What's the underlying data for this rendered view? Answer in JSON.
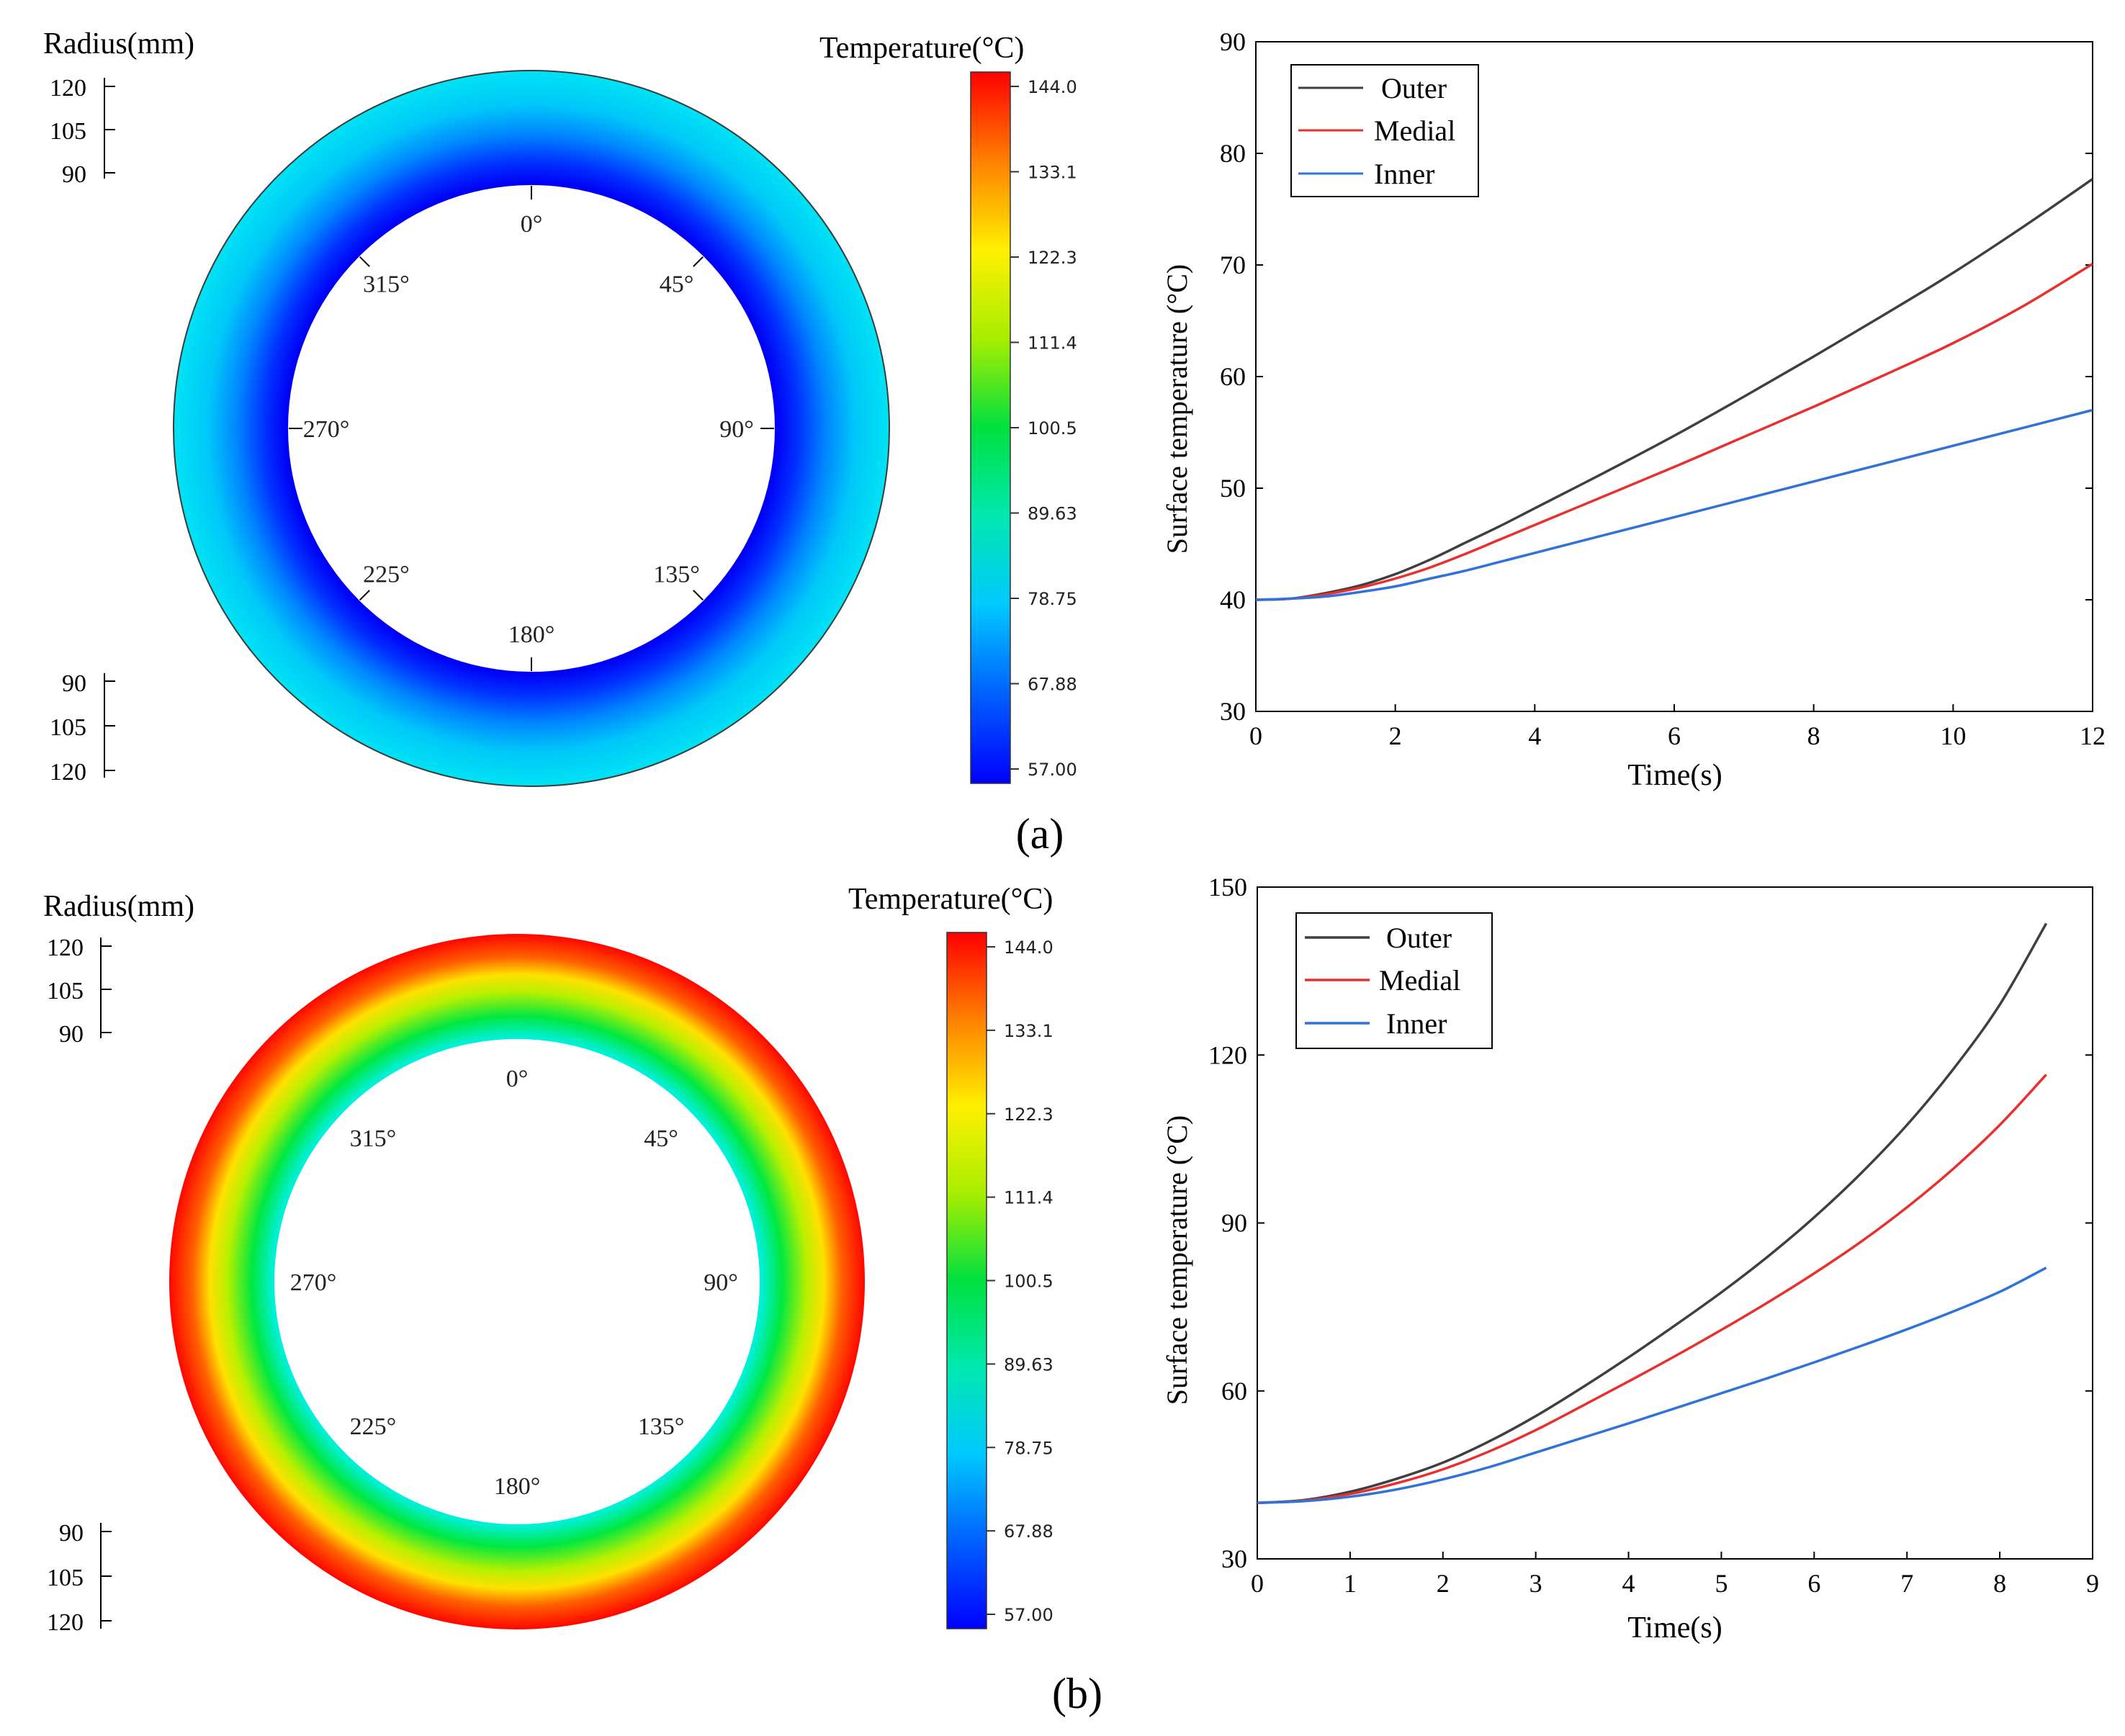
{
  "figure": {
    "panel_a_label": "(a)",
    "panel_b_label": "(b)"
  },
  "chart_data": [
    {
      "panel": "a",
      "type": "polar-contour",
      "radius_title": "Radius(mm)",
      "radius_ticks": [
        "120",
        "105",
        "90"
      ],
      "colorbar_title": "Temperature(°C)",
      "colorbar_labels": [
        "144.0",
        "133.1",
        "122.3",
        "111.4",
        "100.5",
        "89.63",
        "78.75",
        "67.88",
        "57.00"
      ],
      "colorbar_range": [
        57.0,
        144.0
      ],
      "inner_radius_mm": 90,
      "outer_radius_mm": 120,
      "inner_temperature": 57.0,
      "outer_temperature": 78.75,
      "angle_labels": [
        "0°",
        "45°",
        "90°",
        "135°",
        "180°",
        "225°",
        "270°",
        "315°"
      ],
      "angles_deg": [
        0,
        45,
        90,
        135,
        180,
        225,
        270,
        315
      ]
    },
    {
      "panel": "a",
      "type": "line",
      "xlabel": "Time(s)",
      "ylabel": "Surface temperature (°C)",
      "xlim": [
        0,
        12
      ],
      "ylim": [
        30,
        90
      ],
      "xticks": [
        "0",
        "2",
        "4",
        "6",
        "8",
        "10",
        "12"
      ],
      "yticks": [
        "30",
        "40",
        "50",
        "60",
        "70",
        "80",
        "90"
      ],
      "x": [
        0,
        0.5,
        1,
        1.5,
        2,
        2.5,
        3,
        3.5,
        4,
        5,
        6,
        7,
        8,
        9,
        10,
        11,
        12
      ],
      "series": [
        {
          "name": "Outer",
          "color": "#3f3f3f",
          "values": [
            40.0,
            40.1,
            40.6,
            41.3,
            42.3,
            43.6,
            45.1,
            46.6,
            48.2,
            51.4,
            54.7,
            58.2,
            61.8,
            65.5,
            69.3,
            73.4,
            77.7
          ]
        },
        {
          "name": "Medial",
          "color": "#e8302e",
          "values": [
            40.0,
            40.1,
            40.5,
            41.1,
            41.9,
            42.9,
            44.1,
            45.4,
            46.7,
            49.3,
            51.9,
            54.6,
            57.3,
            60.1,
            63.0,
            66.3,
            70.1
          ]
        },
        {
          "name": "Inner",
          "color": "#2f73d9",
          "values": [
            40.0,
            40.1,
            40.3,
            40.7,
            41.2,
            41.9,
            42.6,
            43.4,
            44.2,
            45.8,
            47.4,
            49.0,
            50.6,
            52.2,
            53.8,
            55.4,
            57.0
          ]
        }
      ]
    },
    {
      "panel": "b",
      "type": "polar-contour",
      "radius_title": "Radius(mm)",
      "radius_ticks": [
        "120",
        "105",
        "90"
      ],
      "colorbar_title": "Temperature(°C)",
      "colorbar_labels": [
        "144.0",
        "133.1",
        "122.3",
        "111.4",
        "100.5",
        "89.63",
        "78.75",
        "67.88",
        "57.00"
      ],
      "colorbar_range": [
        57.0,
        144.0
      ],
      "inner_radius_mm": 90,
      "outer_radius_mm": 120,
      "inner_temperature": 78.75,
      "outer_temperature": 144.0,
      "angle_labels": [
        "0°",
        "45°",
        "90°",
        "135°",
        "180°",
        "225°",
        "270°",
        "315°"
      ],
      "angles_deg": [
        0,
        45,
        90,
        135,
        180,
        225,
        270,
        315
      ]
    },
    {
      "panel": "b",
      "type": "line",
      "xlabel": "Time(s)",
      "ylabel": "Surface temperature (°C)",
      "xlim": [
        0,
        9
      ],
      "ylim": [
        30,
        150
      ],
      "xticks": [
        "0",
        "1",
        "2",
        "3",
        "4",
        "5",
        "6",
        "7",
        "8",
        "9"
      ],
      "yticks": [
        "30",
        "60",
        "90",
        "120",
        "150"
      ],
      "x": [
        0,
        0.5,
        1,
        1.5,
        2,
        2.5,
        3,
        3.5,
        4,
        4.5,
        5,
        5.5,
        6,
        6.5,
        7,
        7.5,
        8,
        8.5
      ],
      "series": [
        {
          "name": "Outer",
          "color": "#3f3f3f",
          "values": [
            40.0,
            40.5,
            42.0,
            44.3,
            47.2,
            51.0,
            55.5,
            60.6,
            66.0,
            71.7,
            77.6,
            84.0,
            91.0,
            98.8,
            107.5,
            117.5,
            129.0,
            143.5
          ]
        },
        {
          "name": "Medial",
          "color": "#e8302e",
          "values": [
            40.0,
            40.4,
            41.6,
            43.5,
            46.0,
            49.2,
            53.0,
            57.3,
            61.7,
            66.2,
            70.9,
            75.8,
            81.0,
            86.6,
            92.8,
            99.7,
            107.5,
            116.5
          ]
        },
        {
          "name": "Inner",
          "color": "#2f73d9",
          "values": [
            40.0,
            40.3,
            41.1,
            42.4,
            44.2,
            46.4,
            49.0,
            51.6,
            54.2,
            56.9,
            59.6,
            62.3,
            65.1,
            68.0,
            71.0,
            74.2,
            77.7,
            82.0
          ]
        }
      ]
    }
  ]
}
